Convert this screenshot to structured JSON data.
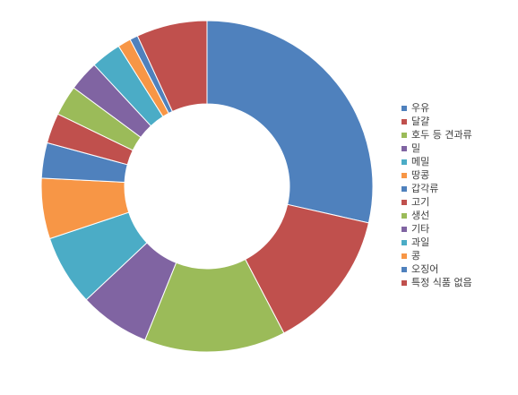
{
  "chart_data": {
    "type": "pie",
    "variant": "doughnut",
    "title": "",
    "legend_position": "right",
    "categories": [
      "우유",
      "달걀",
      "호두 등 견과류",
      "밀",
      "메밀",
      "땅콩",
      "갑각류",
      "고기",
      "생선",
      "기타",
      "과일",
      "콩",
      "오징어",
      "특정 식품 없음"
    ],
    "values": [
      29,
      14,
      14,
      7,
      7,
      6,
      3.5,
      3,
      3,
      3,
      3,
      1.3,
      0.8,
      7
    ],
    "colors": [
      "#4F81BD",
      "#C0504D",
      "#9BBB59",
      "#8064A2",
      "#4BACC6",
      "#F79646",
      "#4F81BD",
      "#C0504D",
      "#9BBB59",
      "#8064A2",
      "#4BACC6",
      "#F79646",
      "#4F81BD",
      "#C0504D"
    ]
  }
}
